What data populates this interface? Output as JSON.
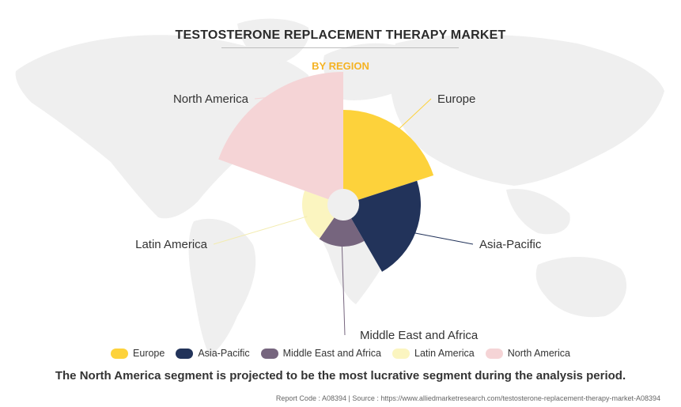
{
  "header": {
    "title": "TESTOSTERONE REPLACEMENT THERAPY MARKET",
    "subtitle": "BY REGION"
  },
  "chart_data": {
    "type": "polar-area",
    "categories": [
      "Europe",
      "Asia-Pacific",
      "Middle East and Africa",
      "Latin America",
      "North America"
    ],
    "series": [
      {
        "values": [
          100,
          78,
          33,
          32,
          148
        ]
      }
    ],
    "colors": [
      "#fdd23b",
      "#22335a",
      "#76657e",
      "#fbf5c0",
      "#f5d4d6"
    ],
    "legend_position": "bottom",
    "labels": [
      "Europe",
      "Asia-Pacific",
      "Middle East and Africa",
      "Latin America",
      "North America"
    ]
  },
  "legend": [
    {
      "label": "Europe",
      "color": "#fdd23b"
    },
    {
      "label": "Asia-Pacific",
      "color": "#22335a"
    },
    {
      "label": "Middle East and Africa",
      "color": "#76657e"
    },
    {
      "label": "Latin America",
      "color": "#fbf5c0"
    },
    {
      "label": "North America",
      "color": "#f5d4d6"
    }
  ],
  "caption": "The North America segment is projected to be the most lucrative segment during the analysis period.",
  "footer": "Report Code : A08394  |  Source : https://www.alliedmarketresearch.com/testosterone-replacement-therapy-market-A08394",
  "background": {
    "map_color": "#eeeeee"
  }
}
